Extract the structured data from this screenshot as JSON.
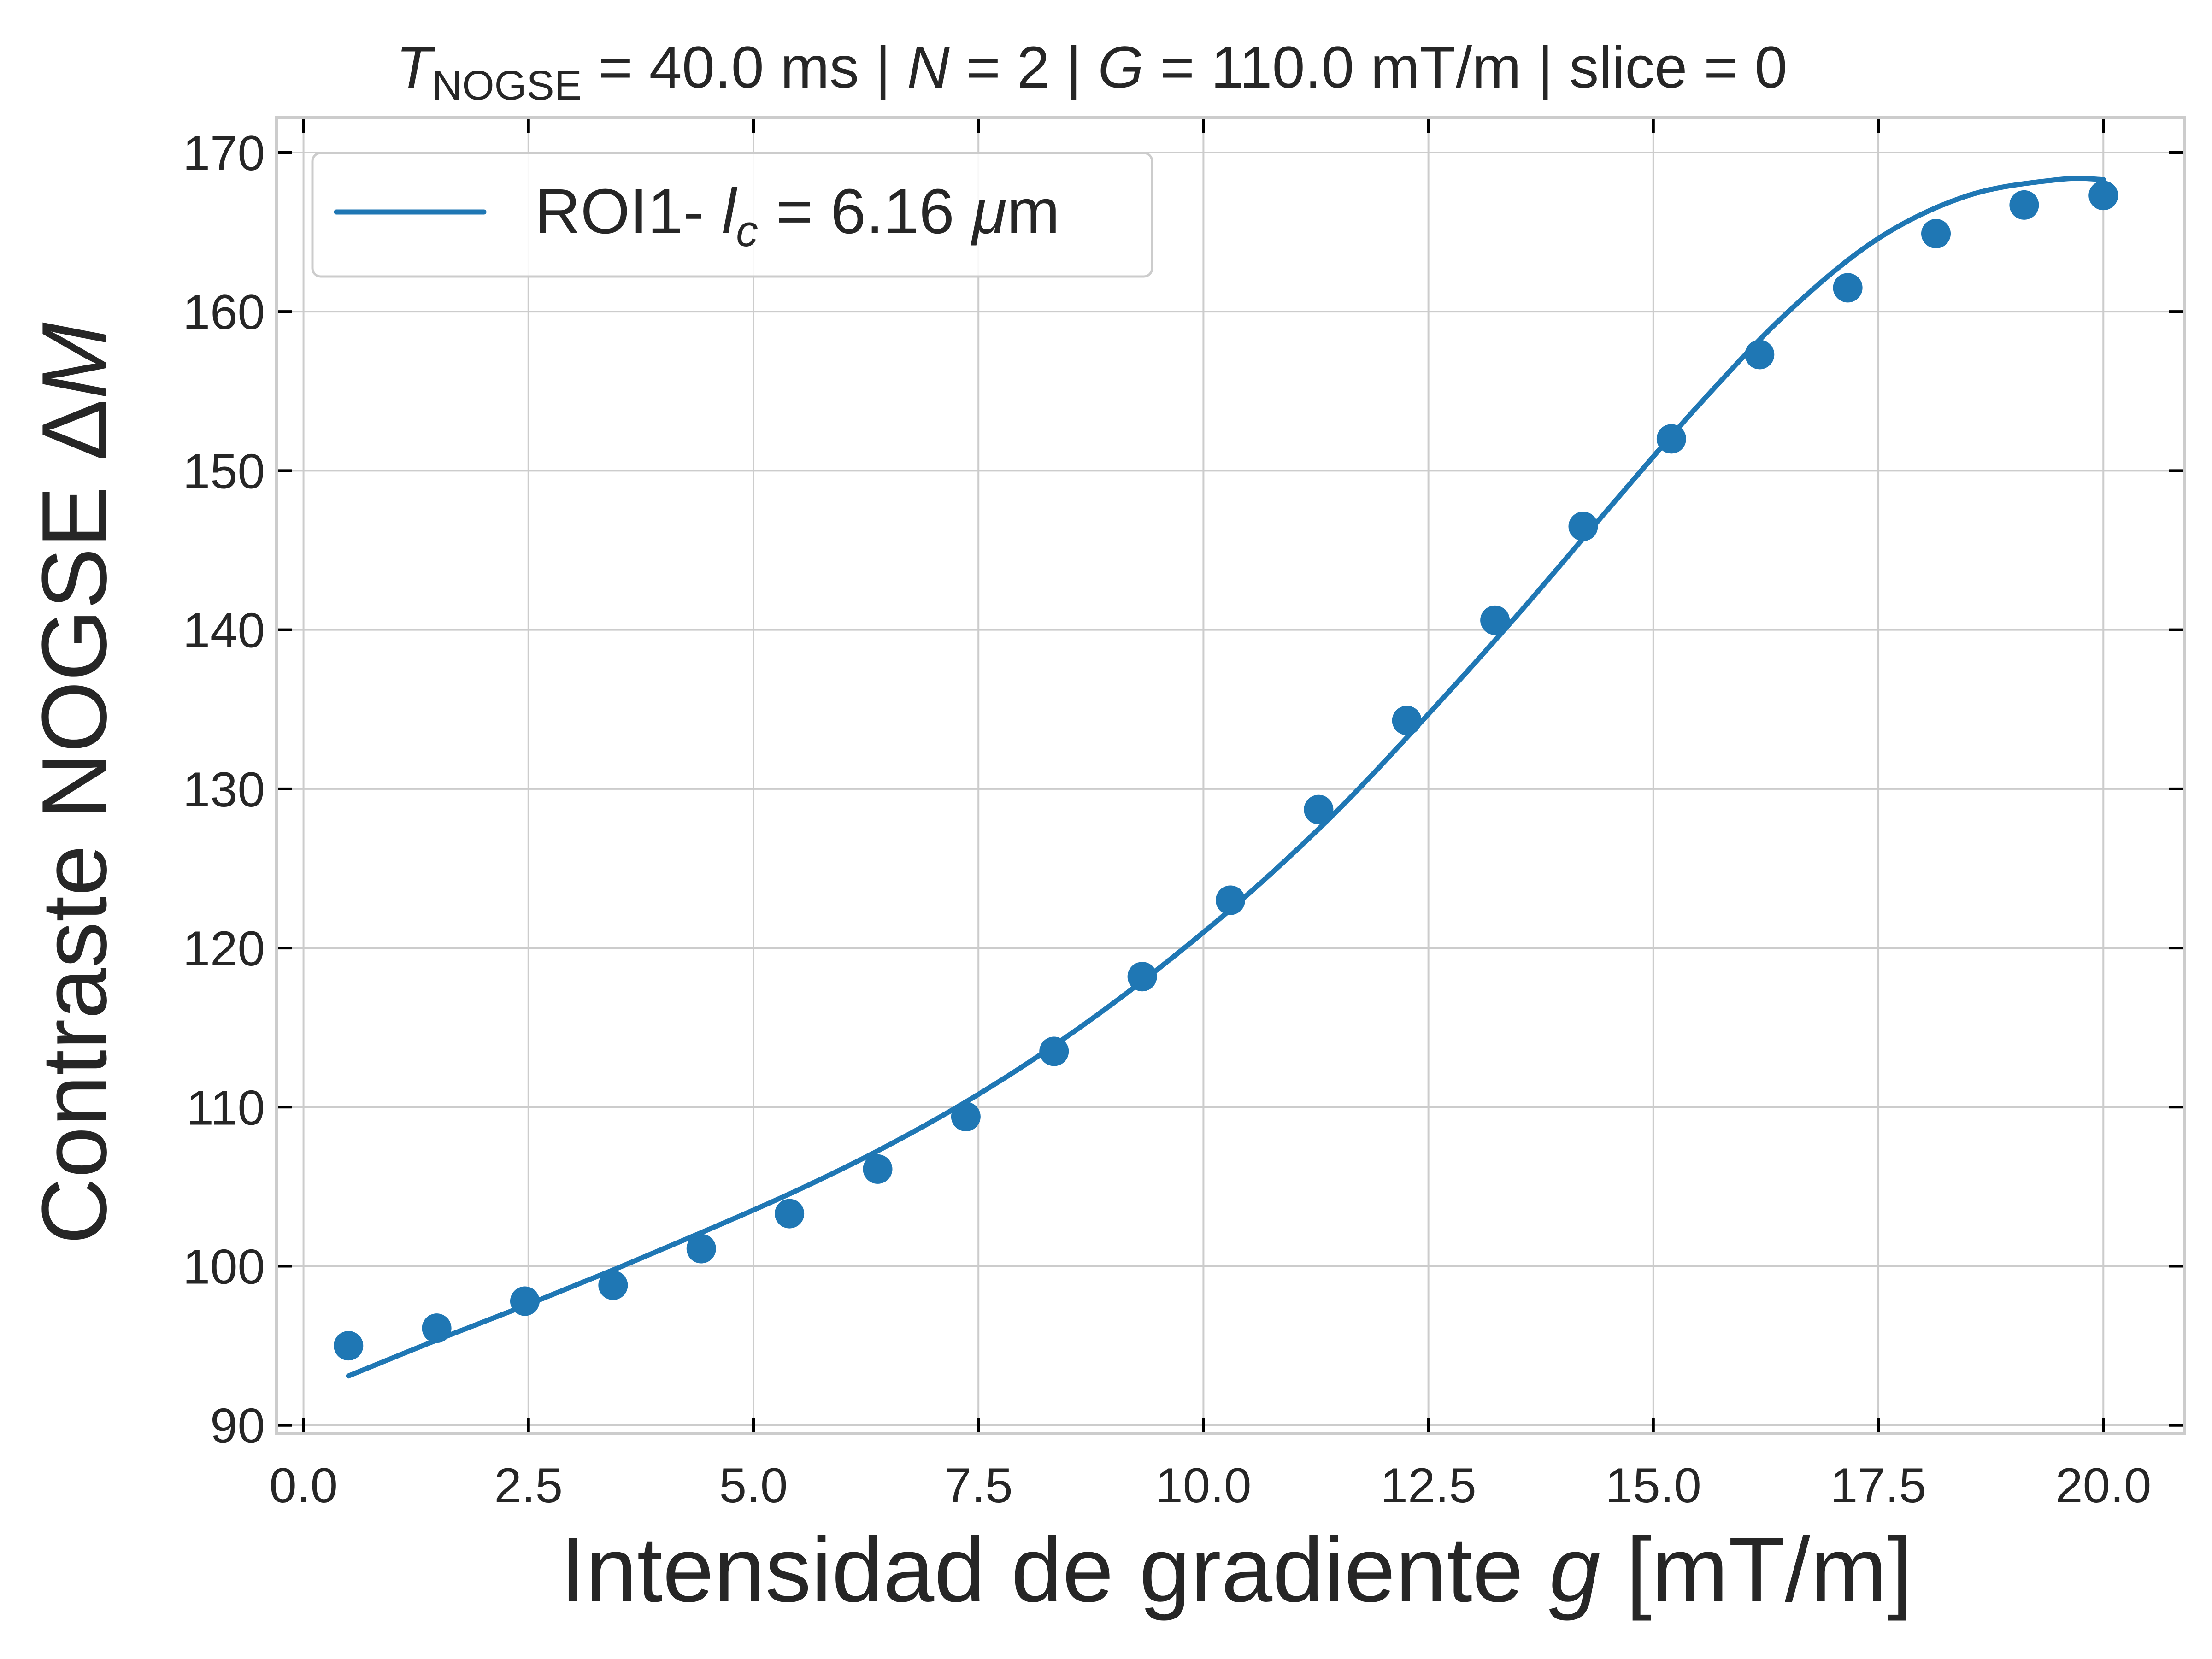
{
  "chart_data": {
    "type": "scatter",
    "title": {
      "T_symbol": "T",
      "T_subscript": "NOGSE",
      "T_value": " = 40.0 ms | ",
      "N_symbol": "N",
      "N_value": " = 2 | ",
      "G_symbol": "G",
      "G_value": " = 110.0 mT/m | slice = 0"
    },
    "xlabel": {
      "prefix": "Intensidad de gradiente ",
      "var": "g",
      "suffix": " [mT/m]"
    },
    "ylabel": {
      "prefix": "Contraste NOGSE Δ",
      "var": "M"
    },
    "xlim": [
      -0.3,
      20.9
    ],
    "ylim": [
      89.5,
      172.2
    ],
    "x_ticks": [
      0.0,
      2.5,
      5.0,
      7.5,
      10.0,
      12.5,
      15.0,
      17.5,
      20.0
    ],
    "x_tick_labels": [
      "0.0",
      "2.5",
      "5.0",
      "7.5",
      "10.0",
      "12.5",
      "15.0",
      "17.5",
      "20.0"
    ],
    "y_ticks": [
      90,
      100,
      110,
      120,
      130,
      140,
      150,
      160,
      170
    ],
    "y_tick_labels": [
      "90",
      "100",
      "110",
      "120",
      "130",
      "140",
      "150",
      "160",
      "170"
    ],
    "grid": true,
    "legend_position": "top-left",
    "color": "#1f77b4",
    "legend": {
      "prefix": "ROI1- ",
      "var": "l",
      "sub": "c",
      "suffix": " = 6.16 ",
      "mu": "μ",
      "unit": "m"
    },
    "series": [
      {
        "name": "ROI1- l_c = 6.16 μm",
        "kind": "line",
        "x": [
          0.5,
          1.5,
          2.5,
          3.5,
          4.5,
          5.5,
          6.5,
          7.5,
          8.5,
          9.5,
          10.5,
          11.5,
          12.5,
          13.5,
          14.5,
          15.5,
          16.5,
          17.5,
          18.5,
          19.5,
          20.0
        ],
        "y": [
          93.1,
          95.4,
          97.6,
          99.9,
          102.3,
          104.8,
          107.6,
          110.8,
          114.5,
          118.7,
          123.4,
          128.7,
          134.7,
          141.0,
          147.6,
          154.1,
          160.0,
          164.6,
          167.3,
          168.3,
          168.3
        ]
      },
      {
        "kind": "scatter",
        "x": [
          0.5,
          1.48,
          2.46,
          3.44,
          4.42,
          5.4,
          6.38,
          7.36,
          8.34,
          9.32,
          10.3,
          11.28,
          12.26,
          13.24,
          14.22,
          15.2,
          16.18,
          17.16,
          18.14,
          19.12,
          20.0
        ],
        "y": [
          95.0,
          96.1,
          97.8,
          98.8,
          101.1,
          103.3,
          106.1,
          109.4,
          113.5,
          118.2,
          123.0,
          128.7,
          134.3,
          140.6,
          146.5,
          152.0,
          157.3,
          161.5,
          164.9,
          166.7,
          167.3
        ]
      }
    ]
  }
}
